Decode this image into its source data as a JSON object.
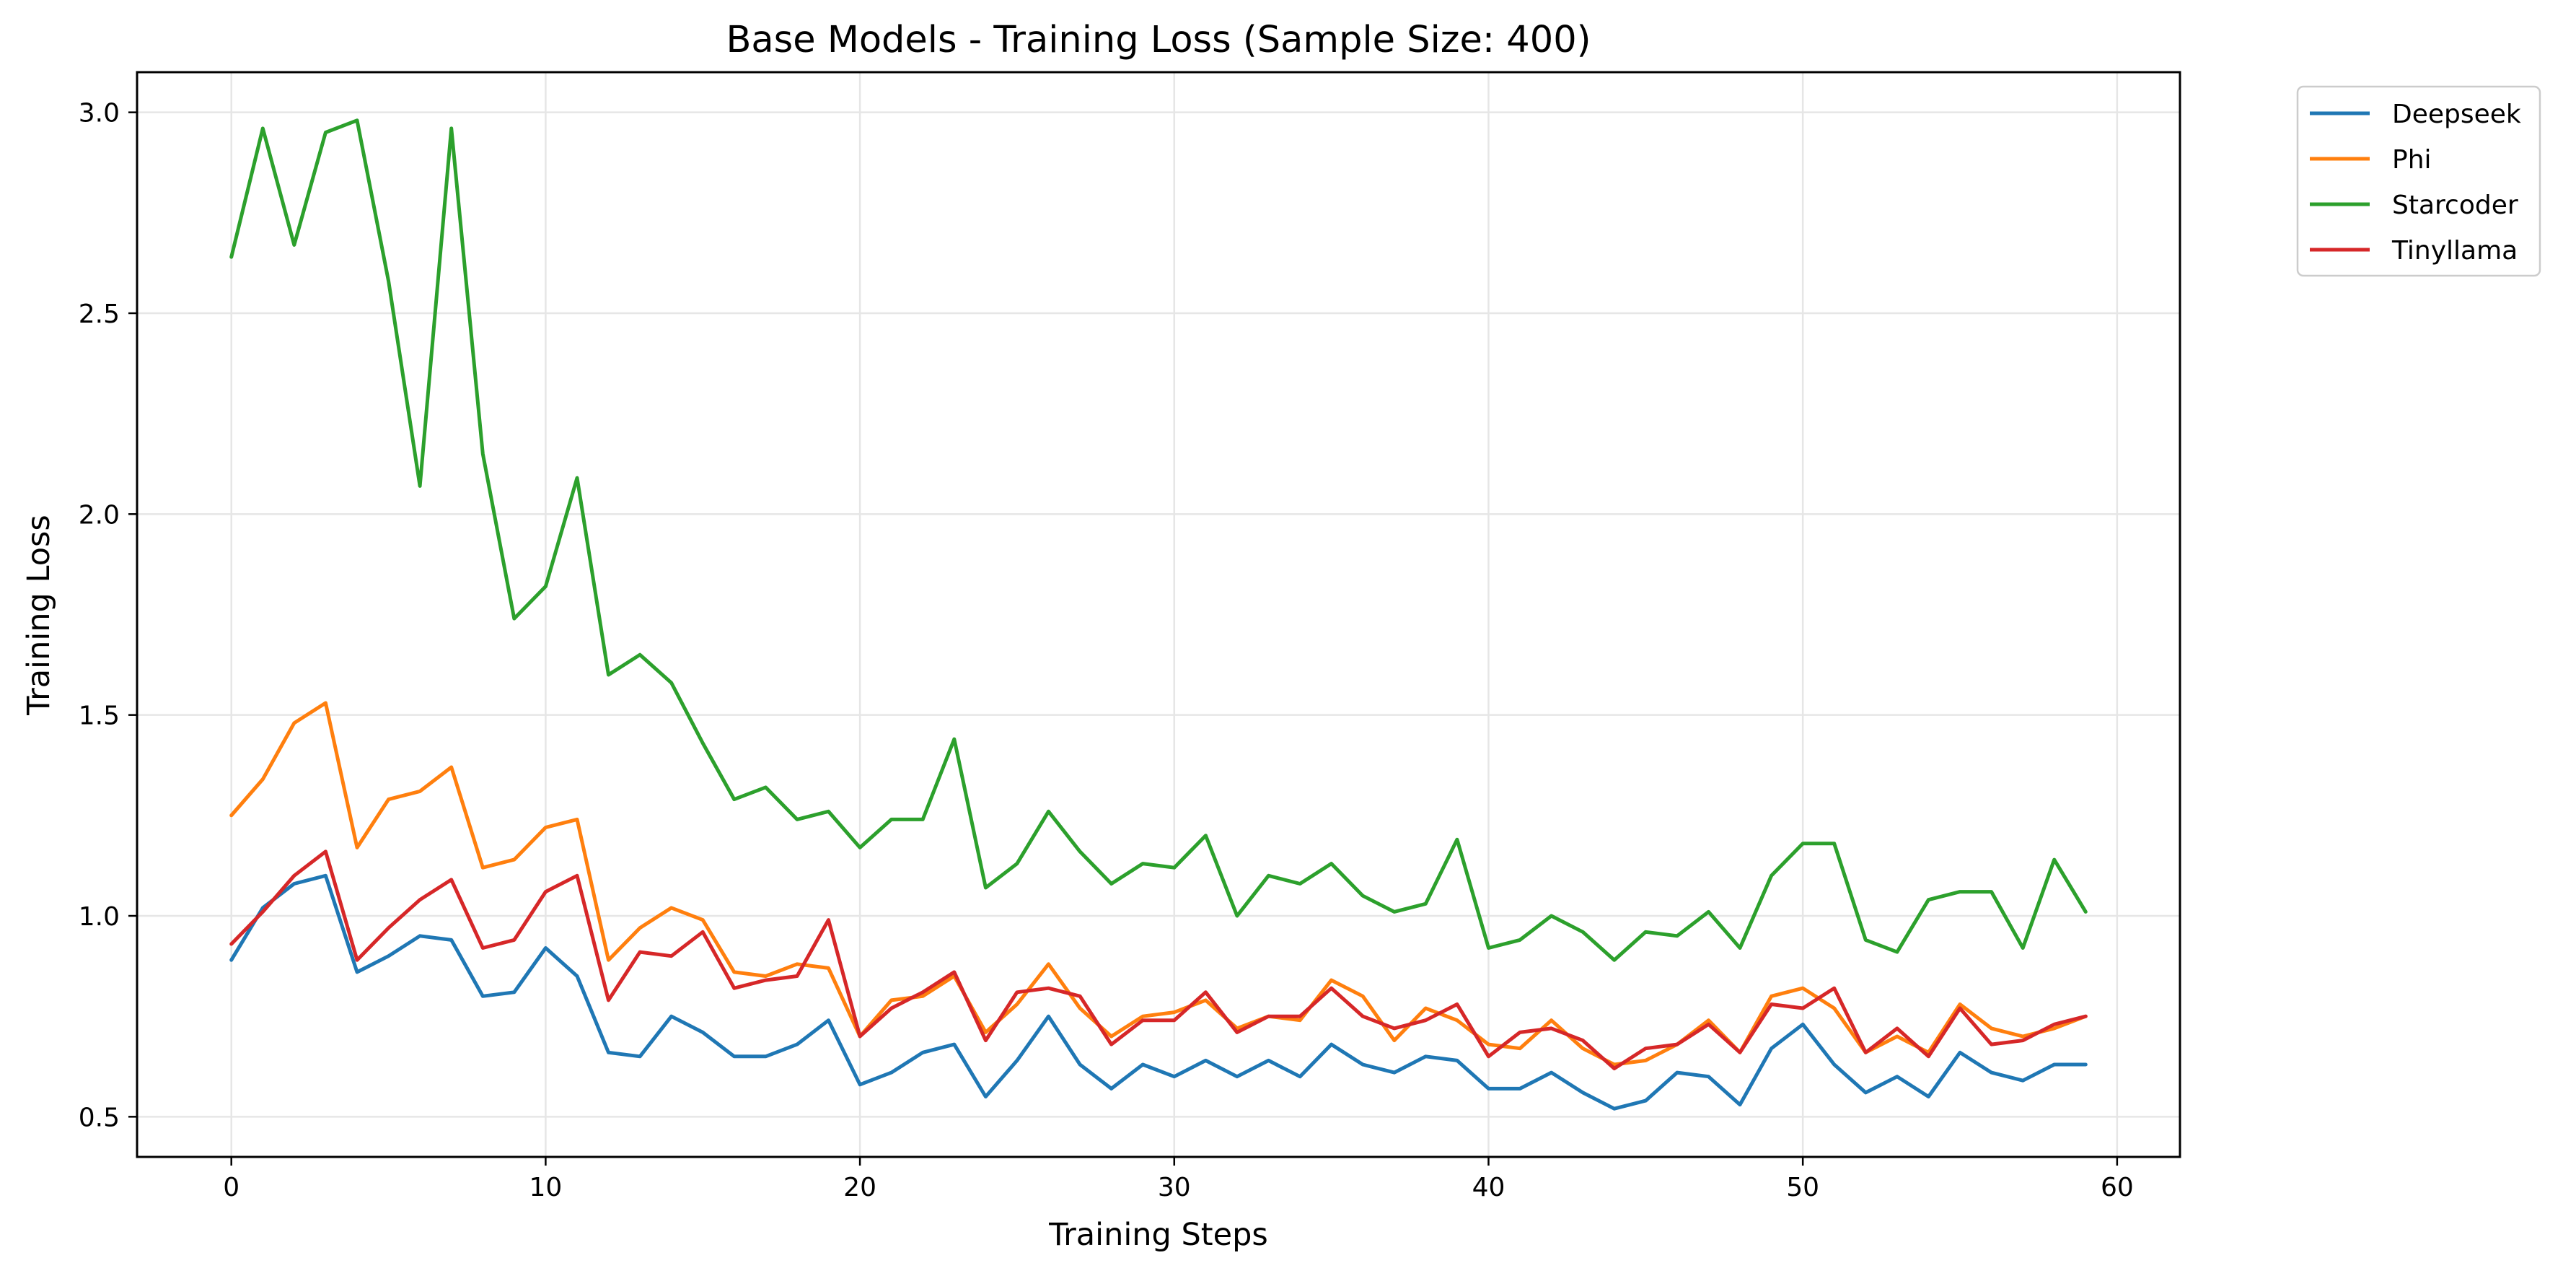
{
  "chart_data": {
    "type": "line",
    "title": "Base Models - Training Loss (Sample Size: 400)",
    "xlabel": "Training Steps",
    "ylabel": "Training Loss",
    "xlim": [
      -3,
      62
    ],
    "ylim": [
      0.4,
      3.1
    ],
    "xticks": [
      0,
      10,
      20,
      30,
      40,
      50,
      60
    ],
    "yticks": [
      0.5,
      1.0,
      1.5,
      2.0,
      2.5,
      3.0
    ],
    "xtick_labels": [
      "0",
      "10",
      "20",
      "30",
      "40",
      "50",
      "60"
    ],
    "ytick_labels": [
      "0.5",
      "1.0",
      "1.5",
      "2.0",
      "2.5",
      "3.0"
    ],
    "grid": true,
    "legend_position": "outside-top-right",
    "x": [
      0,
      1,
      2,
      3,
      4,
      5,
      6,
      7,
      8,
      9,
      10,
      11,
      12,
      13,
      14,
      15,
      16,
      17,
      18,
      19,
      20,
      21,
      22,
      23,
      24,
      25,
      26,
      27,
      28,
      29,
      30,
      31,
      32,
      33,
      34,
      35,
      36,
      37,
      38,
      39,
      40,
      41,
      42,
      43,
      44,
      45,
      46,
      47,
      48,
      49,
      50,
      51,
      52,
      53,
      54,
      55,
      56,
      57,
      58,
      59
    ],
    "series": [
      {
        "name": "Deepseek",
        "color": "#1f77b4",
        "values": [
          0.89,
          1.02,
          1.08,
          1.1,
          0.86,
          0.9,
          0.95,
          0.94,
          0.8,
          0.81,
          0.92,
          0.85,
          0.66,
          0.65,
          0.75,
          0.71,
          0.65,
          0.65,
          0.68,
          0.74,
          0.58,
          0.61,
          0.66,
          0.68,
          0.55,
          0.64,
          0.75,
          0.63,
          0.57,
          0.63,
          0.6,
          0.64,
          0.6,
          0.64,
          0.6,
          0.68,
          0.63,
          0.61,
          0.65,
          0.64,
          0.57,
          0.57,
          0.61,
          0.56,
          0.52,
          0.54,
          0.61,
          0.6,
          0.53,
          0.67,
          0.73,
          0.63,
          0.56,
          0.6,
          0.55,
          0.66,
          0.61,
          0.59,
          0.63,
          0.63
        ]
      },
      {
        "name": "Phi",
        "color": "#ff7f0e",
        "values": [
          1.25,
          1.34,
          1.48,
          1.53,
          1.17,
          1.29,
          1.31,
          1.37,
          1.12,
          1.14,
          1.22,
          1.24,
          0.89,
          0.97,
          1.02,
          0.99,
          0.86,
          0.85,
          0.88,
          0.87,
          0.7,
          0.79,
          0.8,
          0.85,
          0.71,
          0.78,
          0.88,
          0.77,
          0.7,
          0.75,
          0.76,
          0.79,
          0.72,
          0.75,
          0.74,
          0.84,
          0.8,
          0.69,
          0.77,
          0.74,
          0.68,
          0.67,
          0.74,
          0.67,
          0.63,
          0.64,
          0.68,
          0.74,
          0.66,
          0.8,
          0.82,
          0.77,
          0.66,
          0.7,
          0.66,
          0.78,
          0.72,
          0.7,
          0.72,
          0.75
        ]
      },
      {
        "name": "Starcoder",
        "color": "#2ca02c",
        "values": [
          2.64,
          2.96,
          2.67,
          2.95,
          2.98,
          2.58,
          2.07,
          2.96,
          2.15,
          1.74,
          1.82,
          2.09,
          1.6,
          1.65,
          1.58,
          1.43,
          1.29,
          1.32,
          1.24,
          1.26,
          1.17,
          1.24,
          1.24,
          1.44,
          1.07,
          1.13,
          1.26,
          1.16,
          1.08,
          1.13,
          1.12,
          1.2,
          1.0,
          1.1,
          1.08,
          1.13,
          1.05,
          1.01,
          1.03,
          1.19,
          0.92,
          0.94,
          1.0,
          0.96,
          0.89,
          0.96,
          0.95,
          1.01,
          0.92,
          1.1,
          1.18,
          1.18,
          0.94,
          0.91,
          1.04,
          1.06,
          1.06,
          0.92,
          1.14,
          1.01
        ]
      },
      {
        "name": "Tinyllama",
        "color": "#d62728",
        "values": [
          0.93,
          1.01,
          1.1,
          1.16,
          0.89,
          0.97,
          1.04,
          1.09,
          0.92,
          0.94,
          1.06,
          1.1,
          0.79,
          0.91,
          0.9,
          0.96,
          0.82,
          0.84,
          0.85,
          0.99,
          0.7,
          0.77,
          0.81,
          0.86,
          0.69,
          0.81,
          0.82,
          0.8,
          0.68,
          0.74,
          0.74,
          0.81,
          0.71,
          0.75,
          0.75,
          0.82,
          0.75,
          0.72,
          0.74,
          0.78,
          0.65,
          0.71,
          0.72,
          0.69,
          0.62,
          0.67,
          0.68,
          0.73,
          0.66,
          0.78,
          0.77,
          0.82,
          0.66,
          0.72,
          0.65,
          0.77,
          0.68,
          0.69,
          0.73,
          0.75
        ]
      }
    ]
  }
}
